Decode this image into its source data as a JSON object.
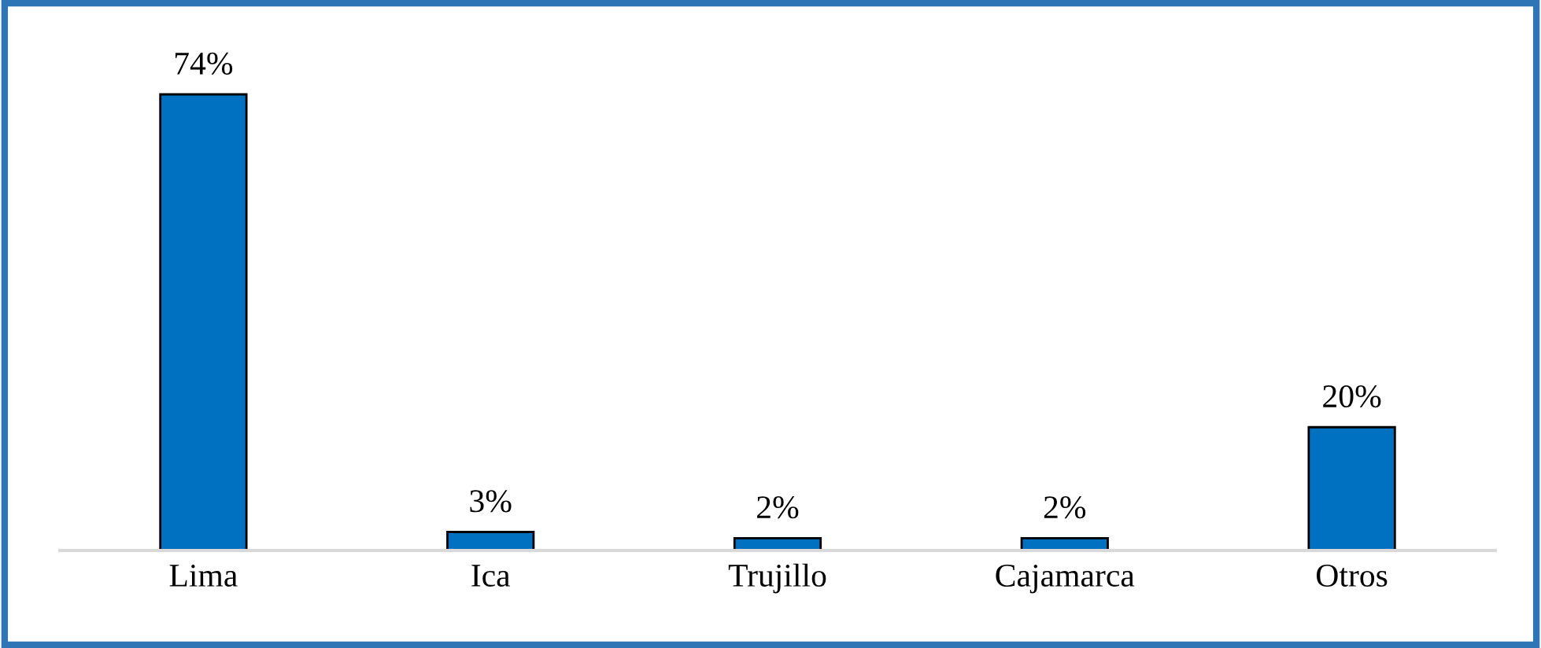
{
  "chart_data": {
    "type": "bar",
    "categories": [
      "Lima",
      "Ica",
      "Trujillo",
      "Cajamarca",
      "Otros"
    ],
    "values": [
      74,
      3,
      2,
      2,
      20
    ],
    "value_labels": [
      "74%",
      "3%",
      "2%",
      "2%",
      "20%"
    ],
    "color": "#0070c0",
    "grid": false,
    "legend": false
  }
}
